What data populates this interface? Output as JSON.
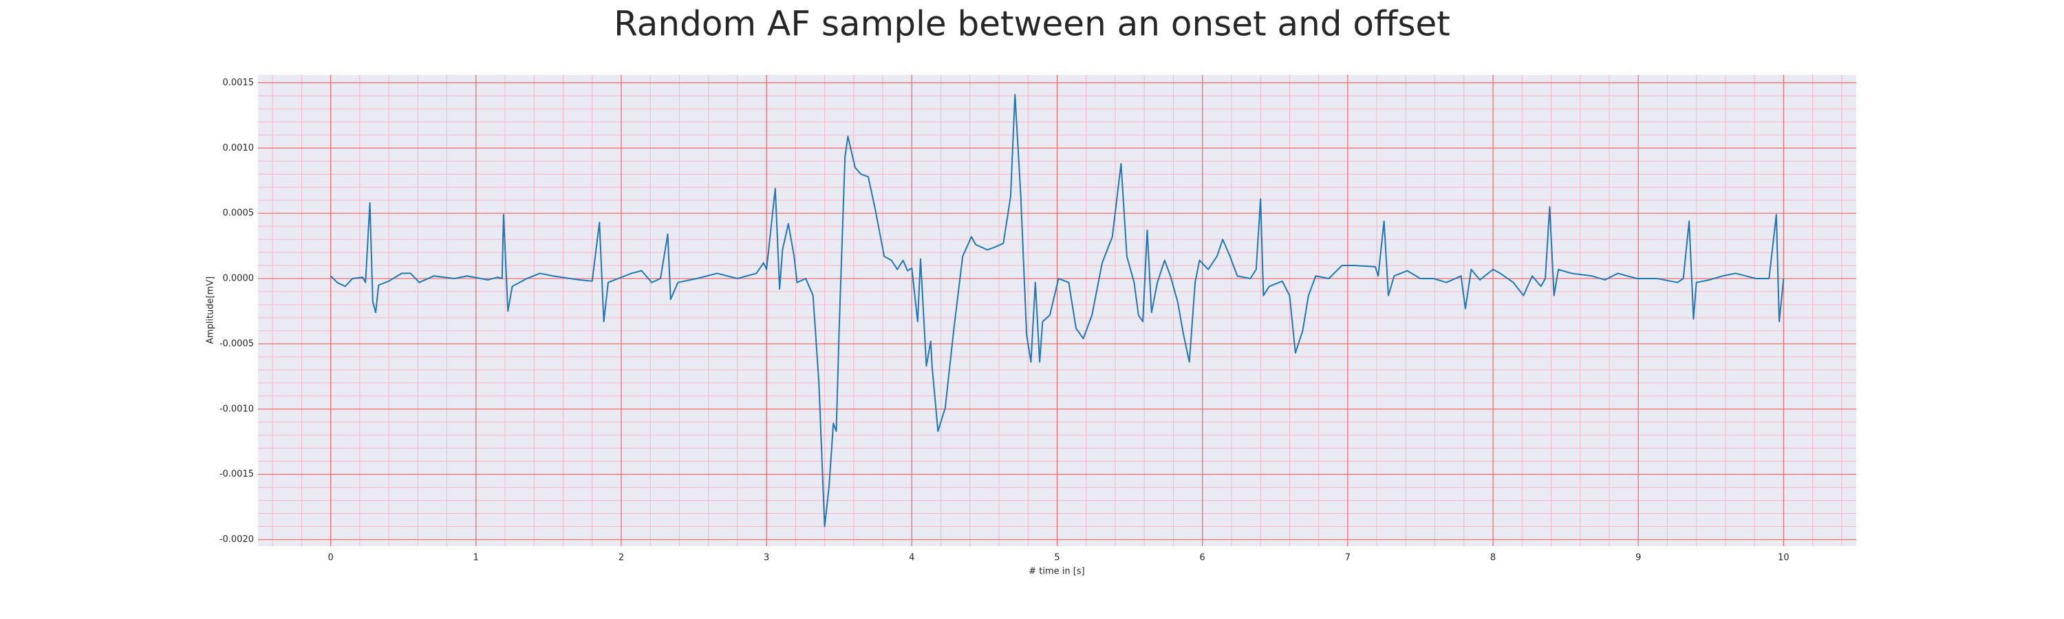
{
  "chart_data": {
    "type": "line",
    "title": "Random AF sample between an onset and offset",
    "xlabel": "# time in [s]",
    "ylabel": "Amplitude[mV]",
    "color": "#1f77b4",
    "grid": true,
    "minor_grid": true,
    "xlim": [
      -0.5,
      10.5
    ],
    "ylim": [
      -0.00205,
      0.00156
    ],
    "xticks": [
      0,
      1,
      2,
      3,
      4,
      5,
      6,
      7,
      8,
      9,
      10
    ],
    "yticks": [
      {
        "value": -0.002,
        "label": "-0.0020"
      },
      {
        "value": -0.0015,
        "label": "-0.0015"
      },
      {
        "value": -0.001,
        "label": "-0.0010"
      },
      {
        "value": -0.0005,
        "label": "-0.0005"
      },
      {
        "value": 0,
        "label": "0.0000"
      },
      {
        "value": 0.0005,
        "label": "0.0005"
      },
      {
        "value": 0.001,
        "label": "0.0010"
      },
      {
        "value": 0.0015,
        "label": "0.0015"
      }
    ],
    "x": [
      0,
      0.045,
      0.1,
      0.15,
      0.22,
      0.24,
      0.27,
      0.29,
      0.31,
      0.33,
      0.4,
      0.49,
      0.55,
      0.61,
      0.71,
      0.85,
      0.94,
      1.08,
      1.15,
      1.18,
      1.19,
      1.22,
      1.25,
      1.35,
      1.44,
      1.53,
      1.71,
      1.8,
      1.85,
      1.88,
      1.91,
      2.07,
      2.14,
      2.21,
      2.27,
      2.32,
      2.34,
      2.39,
      2.52,
      2.66,
      2.8,
      2.93,
      2.98,
      3.0,
      3.06,
      3.09,
      3.11,
      3.15,
      3.19,
      3.21,
      3.27,
      3.32,
      3.36,
      3.4,
      3.43,
      3.46,
      3.48,
      3.5,
      3.54,
      3.56,
      3.61,
      3.65,
      3.7,
      3.75,
      3.81,
      3.86,
      3.9,
      3.94,
      3.97,
      4.0,
      4.04,
      4.06,
      4.1,
      4.13,
      4.14,
      4.18,
      4.23,
      4.29,
      4.35,
      4.41,
      4.44,
      4.52,
      4.57,
      4.63,
      4.68,
      4.71,
      4.75,
      4.79,
      4.82,
      4.85,
      4.88,
      4.9,
      4.95,
      5.01,
      5.08,
      5.13,
      5.18,
      5.24,
      5.31,
      5.38,
      5.44,
      5.48,
      5.53,
      5.56,
      5.59,
      5.62,
      5.65,
      5.69,
      5.74,
      5.78,
      5.83,
      5.87,
      5.91,
      5.95,
      5.98,
      6.04,
      6.1,
      6.14,
      6.19,
      6.24,
      6.33,
      6.37,
      6.4,
      6.42,
      6.46,
      6.55,
      6.6,
      6.64,
      6.69,
      6.73,
      6.78,
      6.87,
      6.96,
      7.05,
      7.19,
      7.21,
      7.25,
      7.28,
      7.32,
      7.41,
      7.5,
      7.59,
      7.68,
      7.78,
      7.81,
      7.85,
      7.91,
      8.0,
      8.05,
      8.14,
      8.21,
      8.27,
      8.33,
      8.36,
      8.39,
      8.42,
      8.45,
      8.54,
      8.68,
      8.77,
      8.86,
      8.99,
      9.13,
      9.27,
      9.31,
      9.35,
      9.38,
      9.4,
      9.49,
      9.58,
      9.67,
      9.81,
      9.9,
      9.95,
      9.97,
      10.0
    ],
    "values": [
      2e-05,
      -3e-05,
      -6e-05,
      0.0,
      1e-05,
      -3e-05,
      0.00058,
      -0.00018,
      -0.00026,
      -5e-05,
      -2e-05,
      4e-05,
      4e-05,
      -3e-05,
      2e-05,
      0.0,
      2e-05,
      -1e-05,
      1e-05,
      0.0,
      0.00049,
      -0.00025,
      -6e-05,
      0.0,
      4e-05,
      2e-05,
      -1e-05,
      -2e-05,
      0.00043,
      -0.00033,
      -3e-05,
      4e-05,
      6e-05,
      -3e-05,
      0.0,
      0.00034,
      -0.00016,
      -3e-05,
      0.0,
      4e-05,
      0.0,
      4e-05,
      0.00012,
      7e-05,
      0.00069,
      -8e-05,
      0.00022,
      0.00042,
      0.00017,
      -3e-05,
      0.0,
      -0.00013,
      -0.00079,
      -0.0019,
      -0.0016,
      -0.00111,
      -0.00117,
      -0.00038,
      0.00093,
      0.00109,
      0.00085,
      0.0008,
      0.00078,
      0.00052,
      0.00017,
      0.00014,
      7e-05,
      0.00014,
      6e-05,
      8e-05,
      -0.00033,
      0.00015,
      -0.00067,
      -0.00048,
      -0.00068,
      -0.00117,
      -0.00099,
      -0.00038,
      0.00017,
      0.00032,
      0.00026,
      0.00022,
      0.00024,
      0.00027,
      0.00063,
      0.00141,
      0.00063,
      -0.00043,
      -0.00064,
      -3e-05,
      -0.00064,
      -0.00033,
      -0.00028,
      0.0,
      -3e-05,
      -0.00038,
      -0.00046,
      -0.00028,
      0.00012,
      0.00032,
      0.00088,
      0.00017,
      -3e-05,
      -0.00028,
      -0.00033,
      0.00037,
      -0.00026,
      -3e-05,
      0.00014,
      2e-05,
      -0.00018,
      -0.00043,
      -0.00064,
      -3e-05,
      0.00014,
      7e-05,
      0.00017,
      0.0003,
      0.00017,
      2e-05,
      0.0,
      7e-05,
      0.00061,
      -0.00013,
      -6e-05,
      -2e-05,
      -0.00013,
      -0.00057,
      -0.0004,
      -0.00013,
      2e-05,
      0.0,
      0.0001,
      0.0001,
      9e-05,
      2e-05,
      0.00044,
      -0.00013,
      2e-05,
      6e-05,
      0.0,
      0.0,
      -3e-05,
      2e-05,
      -0.00023,
      7e-05,
      -1e-05,
      7e-05,
      4e-05,
      -3e-05,
      -0.00013,
      2e-05,
      -6e-05,
      0.0,
      0.00055,
      -0.00013,
      7e-05,
      4e-05,
      2e-05,
      -1e-05,
      4e-05,
      0.0,
      0.0,
      -3e-05,
      0.0,
      0.00044,
      -0.00031,
      -3e-05,
      -1e-05,
      2e-05,
      4e-05,
      0.0,
      0.0,
      0.00049,
      -0.00033,
      0.0
    ]
  }
}
